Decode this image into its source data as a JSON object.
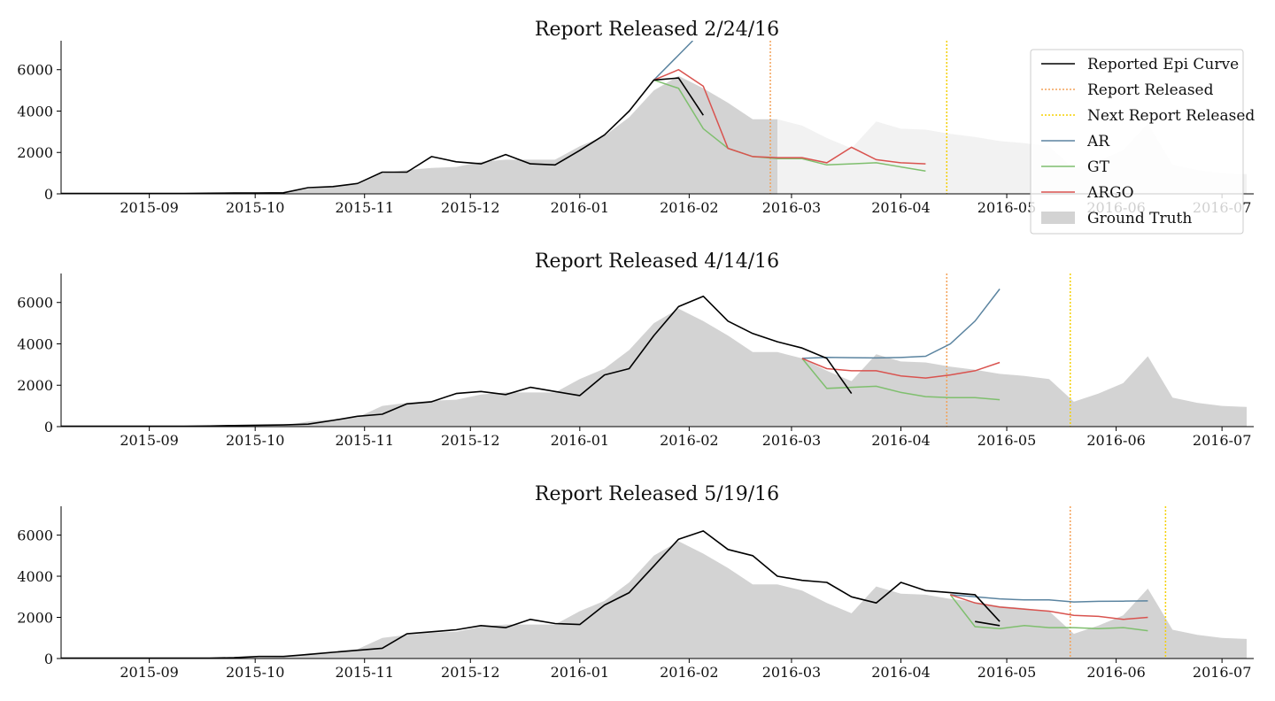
{
  "colors": {
    "reported": "#000000",
    "report_released": "#f4a259",
    "next_report": "#f5d000",
    "ar": "#5b84a0",
    "gt": "#7fbf6e",
    "argo": "#d9534f",
    "ground_truth": "#d3d3d3",
    "ground_truth_future": "#f2f2f2"
  },
  "legend": {
    "placement": "top-right of first panel",
    "items": [
      {
        "key": "reported",
        "label": "Reported Epi Curve",
        "style": "line"
      },
      {
        "key": "report_released",
        "label": "Report Released",
        "style": "dotted"
      },
      {
        "key": "next_report",
        "label": "Next Report Released",
        "style": "dotted"
      },
      {
        "key": "ar",
        "label": "AR",
        "style": "line"
      },
      {
        "key": "gt",
        "label": "GT",
        "style": "line"
      },
      {
        "key": "argo",
        "label": "ARGO",
        "style": "line"
      },
      {
        "key": "ground_truth",
        "label": "Ground Truth",
        "style": "patch"
      }
    ]
  },
  "chart_data": {
    "type": "line",
    "x_axis": {
      "ticks": [
        "2015-09",
        "2015-10",
        "2015-11",
        "2015-12",
        "2016-01",
        "2016-02",
        "2016-03",
        "2016-04",
        "2016-05",
        "2016-06",
        "2016-07"
      ],
      "range": [
        "2015-08-07",
        "2016-07-10"
      ]
    },
    "y_axis": {
      "ticks": [
        0,
        2000,
        4000,
        6000
      ],
      "range": [
        0,
        7400
      ]
    },
    "grid": false,
    "ground_truth": {
      "dates": [
        "2015-08-07",
        "2015-08-14",
        "2015-08-21",
        "2015-08-28",
        "2015-09-04",
        "2015-09-11",
        "2015-09-18",
        "2015-09-25",
        "2015-10-02",
        "2015-10-09",
        "2015-10-16",
        "2015-10-23",
        "2015-10-30",
        "2015-11-06",
        "2015-11-13",
        "2015-11-20",
        "2015-11-27",
        "2015-12-04",
        "2015-12-11",
        "2015-12-18",
        "2015-12-25",
        "2016-01-01",
        "2016-01-08",
        "2016-01-15",
        "2016-01-22",
        "2016-01-29",
        "2016-02-05",
        "2016-02-12",
        "2016-02-19",
        "2016-02-26",
        "2016-03-04",
        "2016-03-11",
        "2016-03-18",
        "2016-03-25",
        "2016-04-01",
        "2016-04-08",
        "2016-04-15",
        "2016-04-22",
        "2016-04-29",
        "2016-05-06",
        "2016-05-13",
        "2016-05-20",
        "2016-05-27",
        "2016-06-03",
        "2016-06-10",
        "2016-06-17",
        "2016-06-24",
        "2016-07-01",
        "2016-07-08"
      ],
      "values": [
        20,
        20,
        20,
        20,
        20,
        20,
        30,
        40,
        40,
        50,
        250,
        350,
        450,
        1000,
        1150,
        1250,
        1300,
        1550,
        1650,
        1650,
        1650,
        2300,
        2800,
        3700,
        5000,
        5700,
        5100,
        4400,
        3600,
        3600,
        3300,
        2700,
        2200,
        3500,
        3150,
        3100,
        2900,
        2750,
        2550,
        2450,
        2300,
        1200,
        1600,
        2100,
        3400,
        1400,
        1150,
        1000,
        950
      ]
    },
    "panels": [
      {
        "title": "Report Released 2/24/16",
        "report_released": "2016-02-24",
        "next_report_released": "2016-04-14",
        "ground_truth_known_until": "2016-02-26",
        "reported": {
          "dates": [
            "2015-08-07",
            "2015-08-14",
            "2015-08-21",
            "2015-08-28",
            "2015-09-04",
            "2015-09-11",
            "2015-09-18",
            "2015-09-25",
            "2015-10-02",
            "2015-10-09",
            "2015-10-16",
            "2015-10-23",
            "2015-10-30",
            "2015-11-06",
            "2015-11-13",
            "2015-11-20",
            "2015-11-27",
            "2015-12-04",
            "2015-12-11",
            "2015-12-18",
            "2015-12-25",
            "2016-01-01",
            "2016-01-08",
            "2016-01-15",
            "2016-01-22",
            "2016-01-29",
            "2016-02-05"
          ],
          "values": [
            20,
            20,
            20,
            20,
            20,
            20,
            30,
            40,
            40,
            50,
            300,
            350,
            500,
            1050,
            1050,
            1800,
            1550,
            1450,
            1900,
            1450,
            1400,
            2100,
            2850,
            4000,
            5500,
            5600,
            3800
          ]
        },
        "ar": {
          "dates": [
            "2016-01-22",
            "2016-02-02"
          ],
          "values": [
            5500,
            7400
          ]
        },
        "gt": {
          "dates": [
            "2016-01-22",
            "2016-01-29",
            "2016-02-05",
            "2016-02-12",
            "2016-02-19",
            "2016-02-26",
            "2016-03-04",
            "2016-03-11",
            "2016-03-18",
            "2016-03-25",
            "2016-04-01",
            "2016-04-08"
          ],
          "values": [
            5500,
            5100,
            3150,
            2200,
            1800,
            1700,
            1700,
            1400,
            1450,
            1500,
            1300,
            1100
          ]
        },
        "argo": {
          "dates": [
            "2016-01-22",
            "2016-01-29",
            "2016-02-05",
            "2016-02-12",
            "2016-02-19",
            "2016-02-26",
            "2016-03-04",
            "2016-03-11",
            "2016-03-18",
            "2016-03-25",
            "2016-04-01",
            "2016-04-08"
          ],
          "values": [
            5500,
            6000,
            5200,
            2200,
            1800,
            1750,
            1750,
            1500,
            2250,
            1650,
            1500,
            1450
          ]
        }
      },
      {
        "title": "Report Released 4/14/16",
        "report_released": "2016-04-14",
        "next_report_released": "2016-05-19",
        "ground_truth_known_until": "2016-07-08",
        "reported": {
          "dates": [
            "2015-08-07",
            "2015-08-14",
            "2015-08-21",
            "2015-08-28",
            "2015-09-04",
            "2015-09-11",
            "2015-09-18",
            "2015-09-25",
            "2015-10-02",
            "2015-10-09",
            "2015-10-16",
            "2015-10-23",
            "2015-10-30",
            "2015-11-06",
            "2015-11-13",
            "2015-11-20",
            "2015-11-27",
            "2015-12-04",
            "2015-12-11",
            "2015-12-18",
            "2015-12-25",
            "2016-01-01",
            "2016-01-08",
            "2016-01-15",
            "2016-01-22",
            "2016-01-29",
            "2016-02-05",
            "2016-02-12",
            "2016-02-19",
            "2016-02-26",
            "2016-03-04",
            "2016-03-11",
            "2016-03-18"
          ],
          "values": [
            20,
            20,
            20,
            20,
            20,
            20,
            30,
            50,
            70,
            80,
            120,
            300,
            500,
            600,
            1100,
            1200,
            1600,
            1700,
            1550,
            1900,
            1700,
            1500,
            2500,
            2800,
            4400,
            5800,
            6300,
            5100,
            4500,
            4100,
            3800,
            3300,
            1600
          ]
        },
        "ar": {
          "dates": [
            "2016-03-04",
            "2016-03-11",
            "2016-03-18",
            "2016-03-25",
            "2016-04-01",
            "2016-04-08",
            "2016-04-15",
            "2016-04-22",
            "2016-04-29"
          ],
          "values": [
            3300,
            3350,
            3330,
            3320,
            3340,
            3400,
            4000,
            5100,
            6650
          ]
        },
        "gt": {
          "dates": [
            "2016-03-04",
            "2016-03-11",
            "2016-03-18",
            "2016-03-25",
            "2016-04-01",
            "2016-04-08",
            "2016-04-15",
            "2016-04-22",
            "2016-04-29"
          ],
          "values": [
            3300,
            1850,
            1900,
            1950,
            1650,
            1450,
            1400,
            1400,
            1300
          ]
        },
        "argo": {
          "dates": [
            "2016-03-04",
            "2016-03-11",
            "2016-03-18",
            "2016-03-25",
            "2016-04-01",
            "2016-04-08",
            "2016-04-15",
            "2016-04-22",
            "2016-04-29"
          ],
          "values": [
            3300,
            2800,
            2700,
            2700,
            2450,
            2350,
            2500,
            2700,
            3100
          ]
        }
      },
      {
        "title": "Report Released 5/19/16",
        "report_released": "2016-05-19",
        "next_report_released": "2016-06-15",
        "ground_truth_known_until": "2016-07-08",
        "reported": {
          "dates": [
            "2015-08-07",
            "2015-08-14",
            "2015-08-21",
            "2015-08-28",
            "2015-09-04",
            "2015-09-11",
            "2015-09-18",
            "2015-09-25",
            "2015-10-02",
            "2015-10-09",
            "2015-10-16",
            "2015-10-23",
            "2015-10-30",
            "2015-11-06",
            "2015-11-13",
            "2015-11-20",
            "2015-11-27",
            "2015-12-04",
            "2015-12-11",
            "2015-12-18",
            "2015-12-25",
            "2016-01-01",
            "2016-01-08",
            "2016-01-15",
            "2016-01-22",
            "2016-01-29",
            "2016-02-05",
            "2016-02-12",
            "2016-02-19",
            "2016-02-26",
            "2016-03-04",
            "2016-03-11",
            "2016-03-18",
            "2016-03-25",
            "2016-04-01",
            "2016-04-08",
            "2016-04-15",
            "2016-04-22",
            "2016-04-29"
          ],
          "values": [
            20,
            20,
            20,
            20,
            20,
            20,
            20,
            40,
            100,
            100,
            200,
            300,
            400,
            500,
            1200,
            1300,
            1400,
            1600,
            1500,
            1900,
            1700,
            1650,
            2600,
            3200,
            4500,
            5800,
            6200,
            5300,
            5000,
            4000,
            3800,
            3700,
            3000,
            2700,
            3700,
            3300,
            3200,
            3100,
            1800
          ]
        },
        "reported_tail": {
          "dates": [
            "2016-04-22",
            "2016-04-29"
          ],
          "values": [
            1800,
            1600
          ]
        },
        "ar": {
          "dates": [
            "2016-04-15",
            "2016-04-22",
            "2016-04-29",
            "2016-05-06",
            "2016-05-13",
            "2016-05-20",
            "2016-05-27",
            "2016-06-03",
            "2016-06-10"
          ],
          "values": [
            3100,
            3000,
            2900,
            2850,
            2850,
            2750,
            2780,
            2790,
            2800
          ]
        },
        "gt": {
          "dates": [
            "2016-04-15",
            "2016-04-22",
            "2016-04-29",
            "2016-05-06",
            "2016-05-13",
            "2016-05-20",
            "2016-05-27",
            "2016-06-03",
            "2016-06-10"
          ],
          "values": [
            3100,
            1550,
            1450,
            1600,
            1500,
            1500,
            1450,
            1500,
            1350
          ]
        },
        "argo": {
          "dates": [
            "2016-04-15",
            "2016-04-22",
            "2016-04-29",
            "2016-05-06",
            "2016-05-13",
            "2016-05-20",
            "2016-05-27",
            "2016-06-03",
            "2016-06-10"
          ],
          "values": [
            3100,
            2700,
            2500,
            2400,
            2300,
            2100,
            2050,
            1900,
            2000
          ]
        }
      }
    ]
  }
}
